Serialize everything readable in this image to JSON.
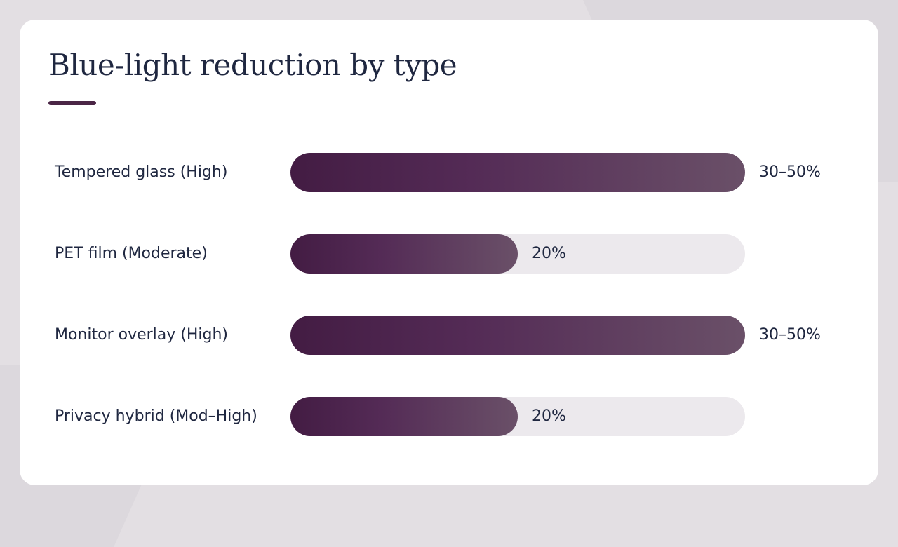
{
  "colors": {
    "background": "#e3dfe3",
    "card": "#ffffff",
    "text": "#1f2740",
    "accent": "#4a2545",
    "bar_start": "#431c43",
    "bar_end": "#6a5068",
    "track": "#ece9ed"
  },
  "chart_data": {
    "type": "bar",
    "orientation": "horizontal",
    "title": "Blue-light reduction by type",
    "categories": [
      "Tempered glass (High)",
      "PET film (Moderate)",
      "Monitor overlay (High)",
      "Privacy hybrid (Mod–High)"
    ],
    "value_labels": [
      "30–50%",
      "20%",
      "30–50%",
      "20%"
    ],
    "values": [
      1.0,
      0.5,
      1.0,
      0.5
    ],
    "xlim": [
      0,
      1
    ],
    "grid": false,
    "legend": "none"
  }
}
